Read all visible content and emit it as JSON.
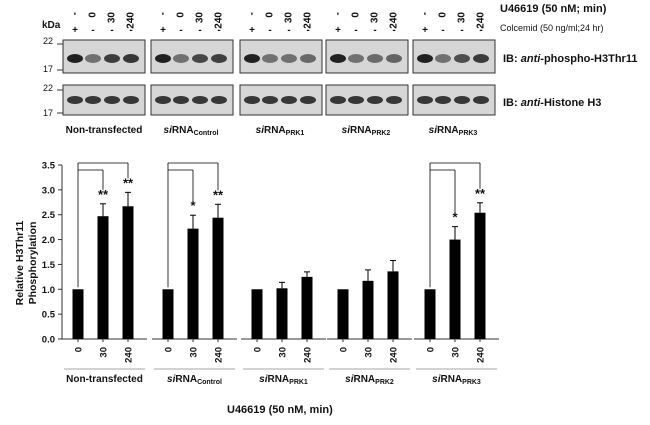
{
  "blot": {
    "treatment_header": "U46619 (50 nM; min)",
    "colcemid_label": "Colcemid (50 ng/ml;24 hr)",
    "kda_label": "kDa",
    "markers": [
      "22",
      "17"
    ],
    "lane_labels": [
      "-",
      "0",
      "30",
      "240"
    ],
    "colcemid_marks": [
      "+",
      "-",
      "-",
      "-"
    ],
    "row1_label_ib": "IB: ",
    "row1_label_anti": "anti",
    "row1_label_rest": "-phospho-H3Thr11",
    "row2_label_ib": "IB: ",
    "row2_label_anti": "anti",
    "row2_label_rest": "-Histone H3",
    "group_labels": [
      {
        "main": "Non-transfected",
        "prefix": "",
        "sub": ""
      },
      {
        "main": "RNA",
        "prefix": "si",
        "sub": "Control"
      },
      {
        "main": "RNA",
        "prefix": "si",
        "sub": "PRK1"
      },
      {
        "main": "RNA",
        "prefix": "si",
        "sub": "PRK2"
      },
      {
        "main": "RNA",
        "prefix": "si",
        "sub": "PRK3"
      }
    ]
  },
  "chart_data": {
    "type": "bar",
    "ylabel_line1": "Relative H3Thr11",
    "ylabel_line2": "Phosphorylation",
    "xlabel": "U46619 (50 nM, min)",
    "ylim": [
      0,
      3.5
    ],
    "yticks": [
      "0.0",
      "0.5",
      "1.0",
      "1.5",
      "2.0",
      "2.5",
      "3.0",
      "3.5"
    ],
    "x_tick_labels": [
      "0",
      "30",
      "240"
    ],
    "groups": [
      {
        "label": "Non-transfected",
        "prefix": "",
        "sub": "",
        "values": [
          1.0,
          2.47,
          2.67
        ],
        "errors": [
          0,
          0.25,
          0.28
        ],
        "sig": [
          "",
          "**",
          "**"
        ],
        "bracket": true
      },
      {
        "label": "RNA",
        "prefix": "si",
        "sub": "Control",
        "values": [
          1.0,
          2.22,
          2.44
        ],
        "errors": [
          0,
          0.27,
          0.27
        ],
        "sig": [
          "",
          "*",
          "**"
        ],
        "bracket": true
      },
      {
        "label": "RNA",
        "prefix": "si",
        "sub": "PRK1",
        "values": [
          1.0,
          1.02,
          1.25
        ],
        "errors": [
          0,
          0.12,
          0.1
        ],
        "sig": [
          "",
          "",
          ""
        ],
        "bracket": false
      },
      {
        "label": "RNA",
        "prefix": "si",
        "sub": "PRK2",
        "values": [
          1.0,
          1.17,
          1.36
        ],
        "errors": [
          0,
          0.22,
          0.22
        ],
        "sig": [
          "",
          "",
          ""
        ],
        "bracket": false
      },
      {
        "label": "RNA",
        "prefix": "si",
        "sub": "PRK3",
        "values": [
          1.0,
          2.0,
          2.54
        ],
        "errors": [
          0,
          0.26,
          0.2
        ],
        "sig": [
          "",
          "*",
          "**"
        ],
        "bracket": true
      }
    ],
    "bar_color": "#000000"
  }
}
